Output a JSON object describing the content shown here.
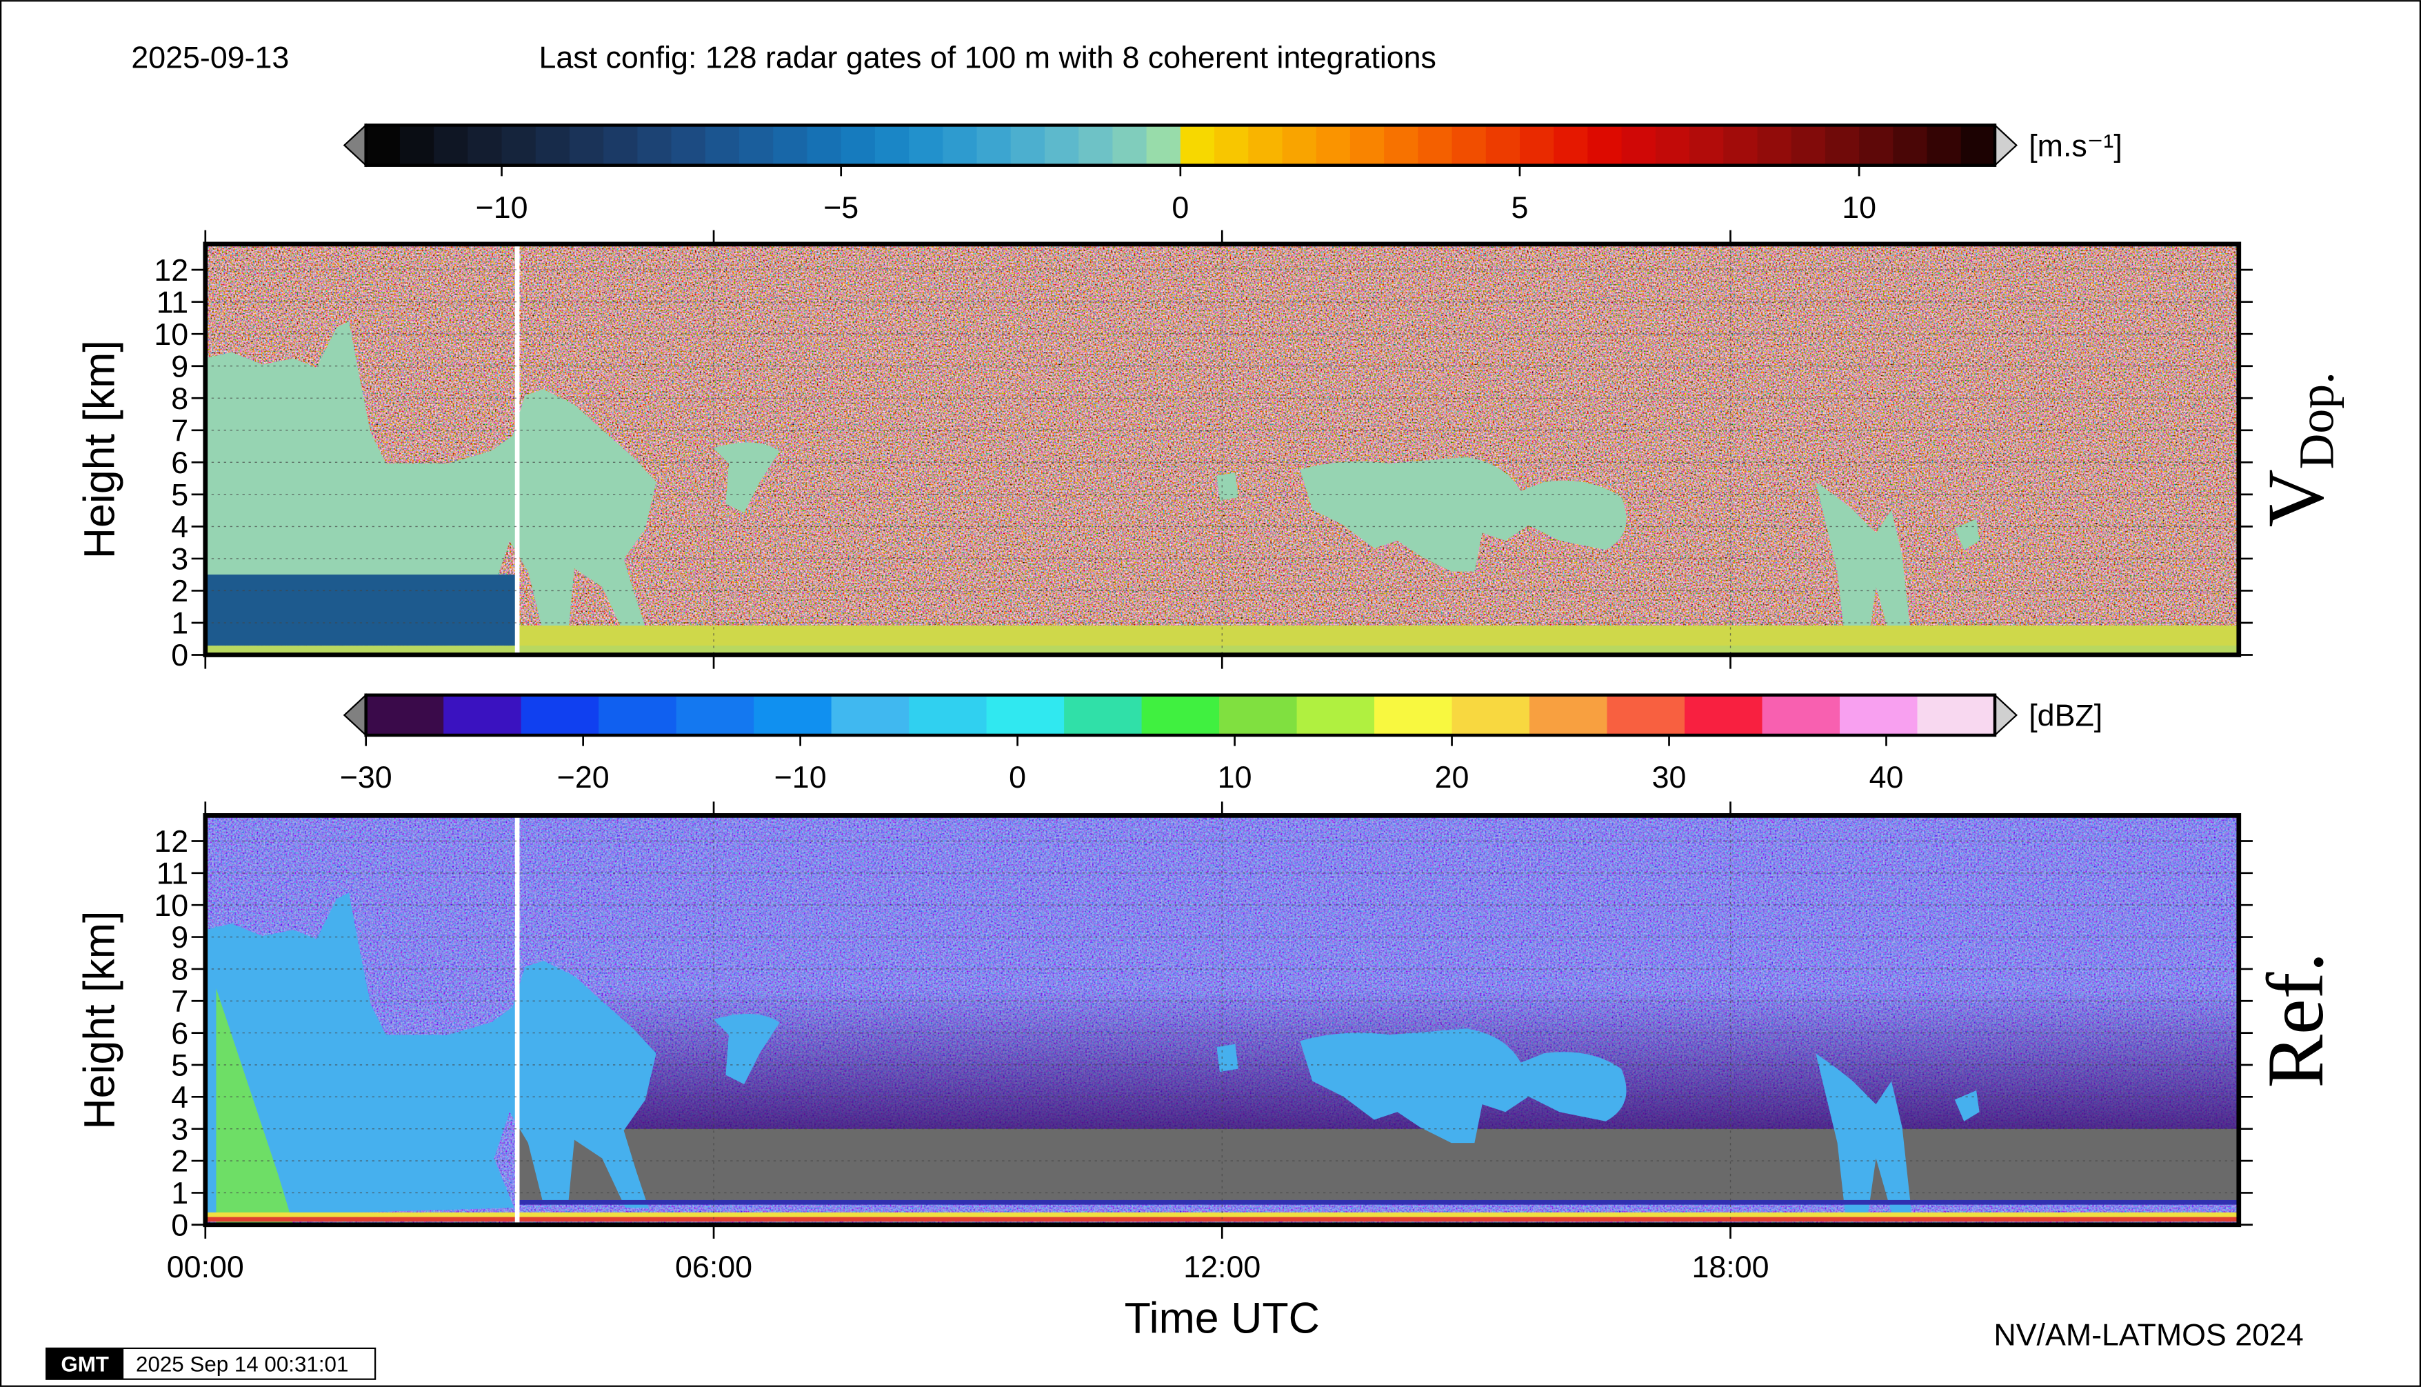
{
  "date": "2025-09-13",
  "config_text": "Last config: 128 radar gates of 100 m with 8 coherent integrations",
  "credit": "NV/AM-LATMOS 2024",
  "stamp": {
    "logo": "GMT",
    "text": "2025 Sep 14 00:31:01"
  },
  "chart_data": [
    {
      "type": "heatmap",
      "panel_label": "V",
      "panel_label_sub": "Dop.",
      "ylabel": "Height [km]",
      "xlim": [
        0,
        24
      ],
      "ylim": [
        0,
        12.8
      ],
      "yticks": [
        0,
        1,
        2,
        3,
        4,
        5,
        6,
        7,
        8,
        9,
        10,
        11,
        12
      ],
      "grid": true,
      "colorbar": {
        "label": "[m.s⁻¹]",
        "lim": [
          -12,
          12
        ],
        "ticks": [
          {
            "value": -10,
            "label": "−10"
          },
          {
            "value": -5,
            "label": "−5"
          },
          0,
          5,
          10
        ],
        "colors": [
          "#050505",
          "#0a0d14",
          "#0f1624",
          "#131d30",
          "#15243c",
          "#172b4a",
          "#1a3358",
          "#1b3a66",
          "#1c4374",
          "#1c4b82",
          "#1b5590",
          "#1a5e9c",
          "#1867a8",
          "#1671b4",
          "#167bbe",
          "#1a86c6",
          "#2291cc",
          "#2e9bcf",
          "#3ca5d0",
          "#4cafcf",
          "#5db9cc",
          "#6ec2c6",
          "#80cdbc",
          "#98dcaa",
          "#f7d800",
          "#f8c600",
          "#f9b400",
          "#f9a400",
          "#fa9400",
          "#f98400",
          "#f77200",
          "#f46000",
          "#f14e00",
          "#ed3c00",
          "#e92a00",
          "#e51800",
          "#dd0a00",
          "#d00806",
          "#c20a08",
          "#b20c0a",
          "#a20c0a",
          "#920c0a",
          "#820b0a",
          "#700a09",
          "#5e0808",
          "#4a0606",
          "#340404",
          "#1c0202"
        ]
      }
    },
    {
      "type": "heatmap",
      "panel_label": "Ref.",
      "ylabel": "Height [km]",
      "xlabel": "Time UTC",
      "xlim": [
        0,
        24
      ],
      "xticks": [
        {
          "value": 0,
          "label": "00:00"
        },
        {
          "value": 6,
          "label": "06:00"
        },
        {
          "value": 12,
          "label": "12:00"
        },
        {
          "value": 18,
          "label": "18:00"
        }
      ],
      "ylim": [
        0,
        12.8
      ],
      "yticks": [
        0,
        1,
        2,
        3,
        4,
        5,
        6,
        7,
        8,
        9,
        10,
        11,
        12
      ],
      "grid": true,
      "colorbar": {
        "label": "[dBZ]",
        "lim": [
          -30,
          45
        ],
        "ticks": [
          {
            "value": -30,
            "label": "−30"
          },
          {
            "value": -20,
            "label": "−20"
          },
          {
            "value": -10,
            "label": "−10"
          },
          0,
          10,
          20,
          30,
          40
        ],
        "colors": [
          "#3a0a4a",
          "#3a12c0",
          "#1040f0",
          "#1060f0",
          "#1478f0",
          "#1090f0",
          "#40b8f0",
          "#30d0f0",
          "#30e8f0",
          "#30e0a8",
          "#40f040",
          "#80e040",
          "#b0f040",
          "#f8f840",
          "#f8d840",
          "#f8a040",
          "#f86040",
          "#f82040",
          "#f860b0",
          "#f8a0f0",
          "#f8d8f0"
        ]
      }
    }
  ]
}
